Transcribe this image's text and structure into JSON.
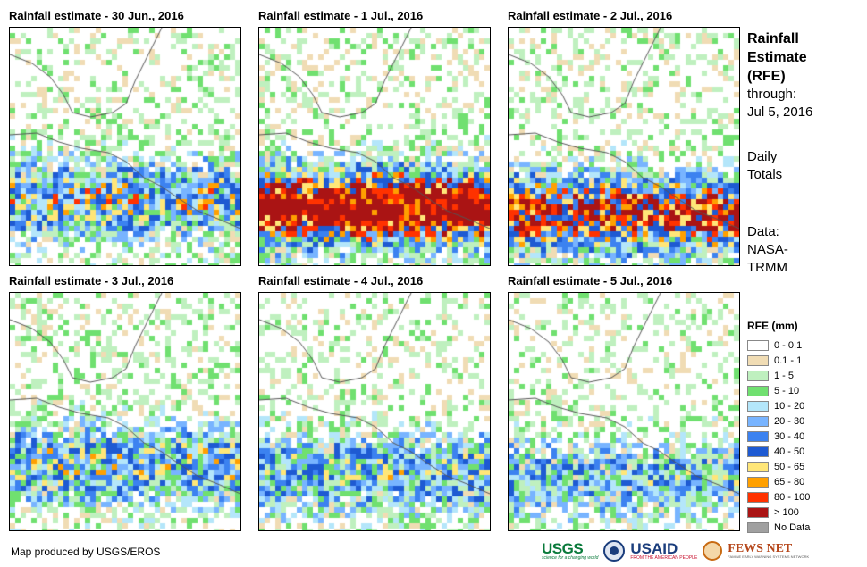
{
  "panels": [
    {
      "title": "Rainfall estimate - 30 Jun., 2016",
      "intensity": 0.55
    },
    {
      "title": "Rainfall estimate - 1 Jul., 2016",
      "intensity": 1.0
    },
    {
      "title": "Rainfall estimate - 2 Jul., 2016",
      "intensity": 0.8
    },
    {
      "title": "Rainfall estimate - 3 Jul., 2016",
      "intensity": 0.5
    },
    {
      "title": "Rainfall estimate - 4 Jul., 2016",
      "intensity": 0.45
    },
    {
      "title": "Rainfall estimate - 5 Jul., 2016",
      "intensity": 0.4
    }
  ],
  "side": {
    "title_line1": "Rainfall",
    "title_line2": "Estimate",
    "title_line3": "(RFE)",
    "through_label": "through:",
    "through_date": "Jul 5, 2016",
    "daily_line1": "Daily",
    "daily_line2": "Totals",
    "data_line1": "Data:",
    "data_line2": "NASA-",
    "data_line3": "TRMM"
  },
  "legend": {
    "title": "RFE (mm)",
    "items": [
      {
        "label": "0 - 0.1",
        "color": "#ffffff"
      },
      {
        "label": "0.1 - 1",
        "color": "#f0dcb4"
      },
      {
        "label": "1 - 5",
        "color": "#bff0bf"
      },
      {
        "label": "5 - 10",
        "color": "#70e070"
      },
      {
        "label": "10 - 20",
        "color": "#b4e6fa"
      },
      {
        "label": "20 - 30",
        "color": "#78b4ff"
      },
      {
        "label": "30 - 40",
        "color": "#3c82f0"
      },
      {
        "label": "40 - 50",
        "color": "#1e5ad2"
      },
      {
        "label": "50 - 65",
        "color": "#ffe678"
      },
      {
        "label": "65 - 80",
        "color": "#ffa000"
      },
      {
        "label": "80 - 100",
        "color": "#ff3200"
      },
      {
        "label": "> 100",
        "color": "#aa1414"
      },
      {
        "label": "No Data",
        "color": "#a0a0a0"
      }
    ]
  },
  "credit": "Map produced by USGS/EROS",
  "logos": {
    "usgs": "USGS",
    "usgs_tagline": "science for a changing world",
    "usaid": "USAID",
    "usaid_tagline": "FROM THE AMERICAN PEOPLE",
    "fews": "FEWS NET",
    "fews_tagline": "FAMINE EARLY WARNING SYSTEMS NETWORK"
  }
}
